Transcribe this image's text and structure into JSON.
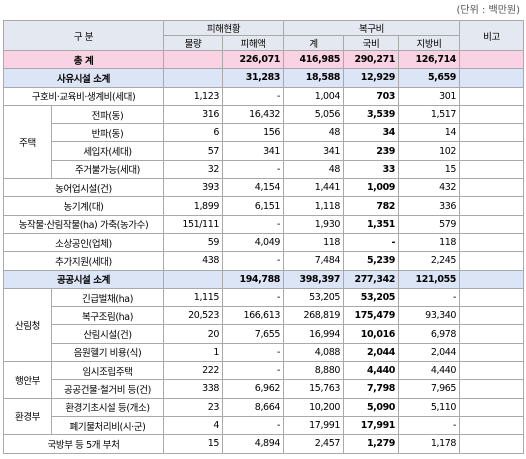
{
  "unit": "(단위 : 백만원)",
  "header": {
    "category": "구 분",
    "damage": "피해현황",
    "recovery": "복구비",
    "note": "비고",
    "damage_cols": [
      "물량",
      "피해액"
    ],
    "recovery_cols": [
      "계",
      "국비",
      "지방비"
    ]
  },
  "rows": [
    {
      "label": "총 계",
      "fill": "#f9d3e3",
      "values": [
        null,
        "226,071",
        "416,985",
        "290,271",
        "126,714"
      ]
    },
    {
      "label": "사유시설 소계",
      "fill": "#dce5f5",
      "values": [
        null,
        "31,283",
        "18,588",
        "12,929",
        "5,659"
      ]
    },
    {
      "label": "구호비·교육비·생계비(세대)",
      "values": [
        "1,123",
        "-",
        "1,004",
        "703",
        "301"
      ]
    },
    {
      "group": "주택",
      "rows": [
        {
          "label": "전파(동)",
          "values": [
            "316",
            "16,432",
            "5,056",
            "3,539",
            "1,517"
          ]
        },
        {
          "label": "반파(동)",
          "values": [
            "6",
            "156",
            "48",
            "34",
            "14"
          ]
        },
        {
          "label": "세입자(세대)",
          "values": [
            "57",
            "341",
            "341",
            "239",
            "102"
          ]
        },
        {
          "label": "주거불가능(세대)",
          "values": [
            "32",
            "-",
            "48",
            "33",
            "15"
          ]
        }
      ]
    },
    {
      "label": "농어업시설(건)",
      "values": [
        "393",
        "4,154",
        "1,441",
        "1,009",
        "432"
      ]
    },
    {
      "label": "농기계(대)",
      "values": [
        "1,899",
        "6,151",
        "1,118",
        "782",
        "336"
      ]
    },
    {
      "label": "농작물·산림작물(ha) 가축(농가수)",
      "values": [
        "151/111",
        "-",
        "1,930",
        "1,351",
        "579"
      ]
    },
    {
      "label": "소상공인(업체)",
      "values": [
        "59",
        "4,049",
        "118",
        "-",
        "118"
      ]
    },
    {
      "label": "추가지원(세대)",
      "values": [
        "438",
        "-",
        "7,484",
        "5,239",
        "2,245"
      ]
    },
    {
      "label": "공공시설 소계",
      "fill": "#dce5f5",
      "values": [
        null,
        "194,788",
        "398,397",
        "277,342",
        "121,055"
      ]
    },
    {
      "group": "산림청",
      "rows": [
        {
          "label": "긴급벌채(ha)",
          "values": [
            "1,115",
            "-",
            "53,205",
            "53,205",
            "-"
          ]
        },
        {
          "label": "복구조림(ha)",
          "values": [
            "20,523",
            "166,613",
            "268,819",
            "175,479",
            "93,340"
          ]
        },
        {
          "label": "산림시설(건)",
          "values": [
            "20",
            "7,655",
            "16,994",
            "10,016",
            "6,978"
          ]
        },
        {
          "label": "음원헬기 비용(식)",
          "values": [
            "1",
            "-",
            "4,088",
            "2,044",
            "2,044"
          ]
        }
      ]
    },
    {
      "group": "행안부",
      "rows": [
        {
          "label": "임시조립주택",
          "values": [
            "222",
            "-",
            "8,880",
            "4,440",
            "4,440"
          ]
        },
        {
          "label": "공공건물·철거비 등(건)",
          "values": [
            "338",
            "6,962",
            "15,763",
            "7,798",
            "7,965"
          ]
        }
      ]
    },
    {
      "group": "환경부",
      "rows": [
        {
          "label": "환경기초시설 등(개소)",
          "values": [
            "23",
            "8,664",
            "10,200",
            "5,090",
            "5,110"
          ]
        },
        {
          "label": "폐기물처리비(시·군)",
          "values": [
            "4",
            "-",
            "17,991",
            "17,991",
            "-"
          ]
        }
      ]
    },
    {
      "label": "국방부 등 5개 부처",
      "values": [
        "15",
        "4,894",
        "2,457",
        "1,279",
        "1,178"
      ]
    }
  ]
}
